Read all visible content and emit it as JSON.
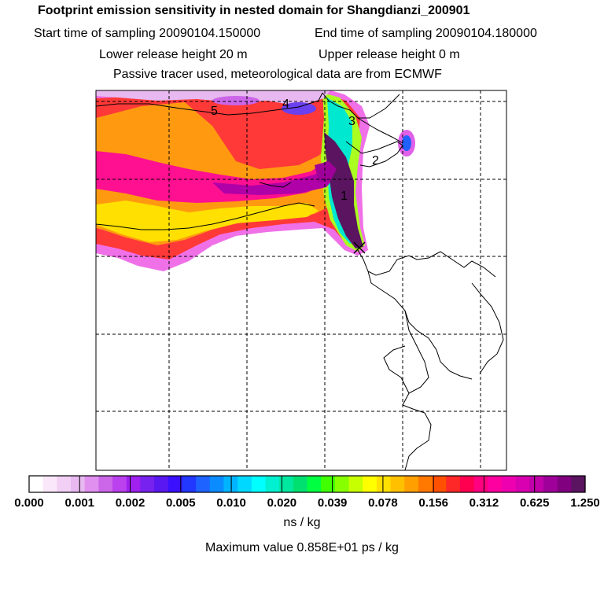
{
  "header": {
    "title": "Footprint emission sensitivity in nested domain for Shangdianzi_200901",
    "start_time": "Start time of sampling 20090104.150000",
    "end_time": "End time of sampling 20090104.180000",
    "lower_height": "Lower release height   20 m",
    "upper_height": "Upper release height    0 m",
    "tracer_note": "Passive tracer used, meteorological data are from ECMWF"
  },
  "map": {
    "trajectory_labels": [
      "1",
      "2",
      "3",
      "4",
      "5"
    ],
    "release_marker": "release-site-x-marker"
  },
  "colorbar": {
    "tick_labels": [
      "0.000",
      "0.001",
      "0.002",
      "0.005",
      "0.010",
      "0.020",
      "0.039",
      "0.078",
      "0.156",
      "0.312",
      "0.625",
      "1.250"
    ],
    "colors": [
      "#ffffff",
      "#fae8fa",
      "#f2d0f5",
      "#e8b8f0",
      "#e090ee",
      "#cc66e8",
      "#bb40ee",
      "#a020f0",
      "#7722ee",
      "#5a18f0",
      "#3a10ff",
      "#2238ff",
      "#1e63ff",
      "#0a8cff",
      "#00b4ff",
      "#00d8ff",
      "#00ffff",
      "#00f0d0",
      "#00e8a0",
      "#00e070",
      "#00ff40",
      "#40ff00",
      "#88ff00",
      "#c8ff00",
      "#ffff00",
      "#ffe000",
      "#ffc000",
      "#ffa000",
      "#ff7800",
      "#ff5000",
      "#ff2828",
      "#ff0050",
      "#ff0080",
      "#ff00a0",
      "#ee00b0",
      "#d800b0",
      "#c000a8",
      "#a0009a",
      "#800080",
      "#5a1460"
    ],
    "units": "ns / kg",
    "max_value": "Maximum value  0.858E+01 ps / kg"
  }
}
